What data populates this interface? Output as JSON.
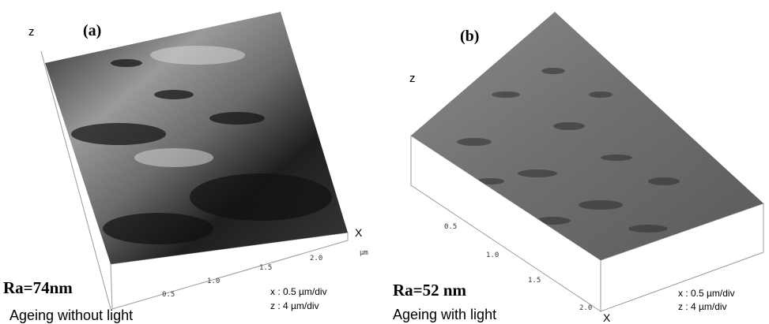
{
  "panels": [
    {
      "label": "(a)",
      "z_axis": "z",
      "x_axis": "X",
      "x_unit": "µm",
      "x_ticks": [
        "0.5",
        "1.0",
        "1.5",
        "2.0"
      ],
      "roughness": "Ra=74nm",
      "caption": "Ageing without light",
      "x_scale": "x : 0.5 µm/div",
      "z_scale": "z : 4 µm/div"
    },
    {
      "label": "(b)",
      "z_axis": "z",
      "x_axis": "X",
      "x_ticks": [
        "0.5",
        "1.0",
        "1.5",
        "2.0"
      ],
      "roughness": "Ra=52 nm",
      "caption": "Ageing with light",
      "x_scale": "x : 0.5 µm/div",
      "z_scale": "z : 4 µm/div"
    }
  ]
}
